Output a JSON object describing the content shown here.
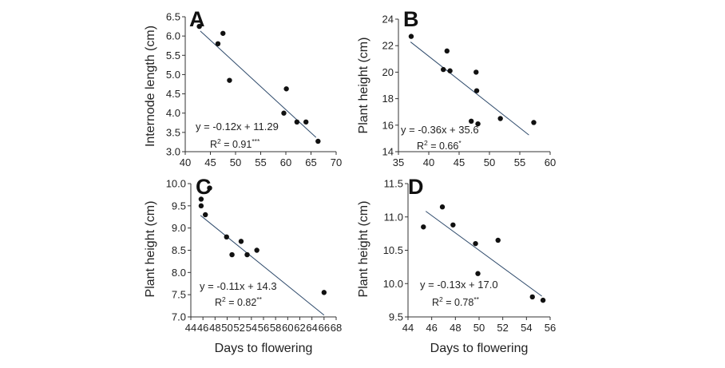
{
  "figure": {
    "bottom_xlabel": "Days to flowering"
  },
  "chart_data": [
    {
      "type": "scatter",
      "panel": "A",
      "xlabel": "",
      "ylabel": "Internode length (cm)",
      "xlim": [
        40,
        70
      ],
      "ylim": [
        3.0,
        6.5
      ],
      "xticks": [
        "40",
        "45",
        "50",
        "55",
        "60",
        "65",
        "70"
      ],
      "yticks": [
        "3.0",
        "3.5",
        "4.0",
        "4.5",
        "5.0",
        "5.5",
        "6.0",
        "6.5"
      ],
      "points": [
        [
          42.8,
          6.25
        ],
        [
          46.5,
          5.8
        ],
        [
          47.5,
          6.07
        ],
        [
          48.8,
          4.85
        ],
        [
          59.6,
          4.0
        ],
        [
          60.1,
          4.63
        ],
        [
          62.2,
          3.77
        ],
        [
          64.0,
          3.77
        ],
        [
          66.4,
          3.27
        ]
      ],
      "regression": {
        "slope": -0.12,
        "intercept": 11.29,
        "x_range": [
          43.0,
          66.0
        ]
      },
      "equation": "y = -0.12x + 11.29",
      "r2_label": "R",
      "r2_value": " = 0.91",
      "significance": "***"
    },
    {
      "type": "scatter",
      "panel": "B",
      "xlabel": "",
      "ylabel": "Plant height (cm)",
      "xlim": [
        35,
        60
      ],
      "ylim": [
        14,
        24
      ],
      "xticks": [
        "35",
        "40",
        "45",
        "50",
        "55",
        "60"
      ],
      "yticks": [
        "14",
        "16",
        "18",
        "20",
        "22",
        "24"
      ],
      "points": [
        [
          37.1,
          22.7
        ],
        [
          42.4,
          20.2
        ],
        [
          43.0,
          21.6
        ],
        [
          43.5,
          20.1
        ],
        [
          47.0,
          16.3
        ],
        [
          47.8,
          20.0
        ],
        [
          47.9,
          18.6
        ],
        [
          48.1,
          16.1
        ],
        [
          51.8,
          16.5
        ],
        [
          57.3,
          16.2
        ]
      ],
      "regression": {
        "slope": -0.36,
        "intercept": 35.6,
        "x_range": [
          37.0,
          56.5
        ]
      },
      "equation": "y = -0.36x + 35.6",
      "r2_label": "R",
      "r2_value": " = 0.66",
      "significance": "*"
    },
    {
      "type": "scatter",
      "panel": "C",
      "xlabel": "Days to flowering",
      "ylabel": "Plant height (cm)",
      "xlim": [
        44,
        68
      ],
      "ylim": [
        7.0,
        10.0
      ],
      "xticks": [
        "44",
        "46",
        "48",
        "50",
        "52",
        "54",
        "56",
        "58",
        "60",
        "62",
        "64",
        "66",
        "68"
      ],
      "yticks": [
        "7.0",
        "7.5",
        "8.0",
        "8.5",
        "9.0",
        "9.5",
        "10.0"
      ],
      "points": [
        [
          45.7,
          9.65
        ],
        [
          45.7,
          9.5
        ],
        [
          46.4,
          9.3
        ],
        [
          47.1,
          9.9
        ],
        [
          49.9,
          8.8
        ],
        [
          50.8,
          8.4
        ],
        [
          52.3,
          8.7
        ],
        [
          53.3,
          8.4
        ],
        [
          54.9,
          8.5
        ],
        [
          66.0,
          7.55
        ]
      ],
      "regression": {
        "slope": -0.11,
        "intercept": 14.3,
        "x_range": [
          45.6,
          66.0
        ]
      },
      "equation": "y = -0.11x + 14.3",
      "r2_label": "R",
      "r2_value": " = 0.82",
      "significance": "**"
    },
    {
      "type": "scatter",
      "panel": "D",
      "xlabel": "Days to flowering",
      "ylabel": "Plant height (cm)",
      "xlim": [
        44,
        56
      ],
      "ylim": [
        9.5,
        11.5
      ],
      "xticks": [
        "44",
        "46",
        "48",
        "50",
        "52",
        "54",
        "56"
      ],
      "yticks": [
        "9.5",
        "10.0",
        "10.5",
        "11.0",
        "11.5"
      ],
      "points": [
        [
          45.3,
          10.85
        ],
        [
          46.9,
          11.15
        ],
        [
          47.8,
          10.88
        ],
        [
          49.7,
          10.6
        ],
        [
          49.9,
          10.15
        ],
        [
          51.6,
          10.65
        ],
        [
          54.5,
          9.8
        ],
        [
          55.4,
          9.75
        ]
      ],
      "regression": {
        "slope": -0.13,
        "intercept": 17.0,
        "x_range": [
          45.5,
          55.3
        ]
      },
      "equation": "y = -0.13x + 17.0",
      "r2_label": "R",
      "r2_value": " = 0.78",
      "significance": "**"
    }
  ]
}
